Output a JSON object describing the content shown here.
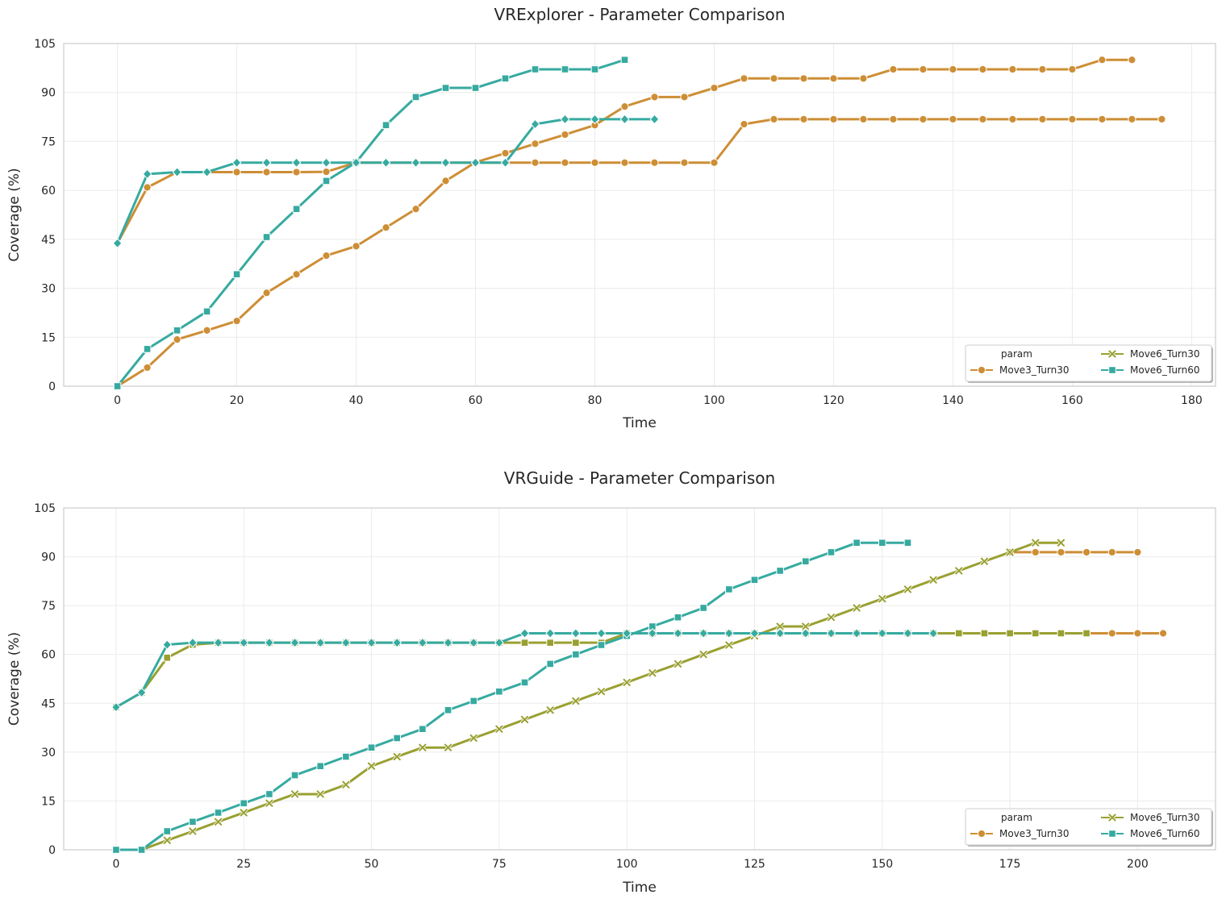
{
  "chart_data": [
    {
      "type": "line",
      "title": "VRExplorer - Parameter Comparison",
      "xlabel": "Time",
      "ylabel": "Coverage (%)",
      "xlim": [
        -9,
        184
      ],
      "ylim": [
        0,
        105
      ],
      "xticks": [
        0,
        20,
        40,
        60,
        80,
        100,
        120,
        140,
        160,
        180
      ],
      "yticks": [
        0,
        15,
        30,
        45,
        60,
        75,
        90,
        105
      ],
      "grid": true,
      "legend": {
        "placement": "lower-right",
        "title": "param",
        "entries": [
          {
            "label": "Move3_Turn30",
            "color": "#cd8e35",
            "marker": "circle"
          },
          {
            "label": "Move6_Turn30",
            "color": "#99a031",
            "marker": "x"
          },
          {
            "label": "Move6_Turn60",
            "color": "#36aaa0",
            "marker": "square"
          }
        ]
      },
      "series": [
        {
          "color": "#cd8e35",
          "marker": "circle",
          "x": [
            0,
            5,
            10,
            15,
            20,
            25,
            30,
            35,
            40,
            45,
            50,
            55,
            60,
            65,
            70,
            75,
            80,
            85,
            90,
            95,
            100,
            105,
            110,
            115,
            120,
            125,
            130,
            135,
            140,
            145,
            150,
            155,
            160,
            165,
            170
          ],
          "y": [
            0,
            5.7,
            14.3,
            17.1,
            20,
            28.6,
            34.3,
            40,
            42.9,
            48.6,
            54.3,
            62.9,
            68.6,
            71.4,
            74.3,
            77.1,
            80,
            85.7,
            88.6,
            88.6,
            91.4,
            94.3,
            94.3,
            94.3,
            94.3,
            94.3,
            97.1,
            97.1,
            97.1,
            97.1,
            97.1,
            97.1,
            97.1,
            100,
            100
          ]
        },
        {
          "color": "#cd8e35",
          "marker": "circle",
          "x": [
            0,
            5,
            10,
            15,
            20,
            25,
            30,
            35,
            40,
            45,
            50,
            55,
            60,
            65,
            70,
            75,
            80,
            85,
            90,
            95,
            100,
            105,
            110,
            115,
            120,
            125,
            130,
            135,
            140,
            145,
            150,
            155,
            160,
            165,
            170,
            175
          ],
          "y": [
            43.8,
            60.9,
            65.6,
            65.6,
            65.6,
            65.6,
            65.6,
            65.7,
            68.5,
            68.5,
            68.5,
            68.5,
            68.5,
            68.5,
            68.5,
            68.5,
            68.5,
            68.5,
            68.5,
            68.5,
            68.5,
            80.3,
            81.8,
            81.8,
            81.8,
            81.8,
            81.8,
            81.8,
            81.8,
            81.8,
            81.8,
            81.8,
            81.8,
            81.8,
            81.8,
            81.8
          ]
        },
        {
          "color": "#36aaa0",
          "marker": "square",
          "x": [
            0,
            5,
            10,
            15,
            20,
            25,
            30,
            35,
            40,
            45,
            50,
            55,
            60,
            65,
            70,
            75,
            80,
            85
          ],
          "y": [
            0,
            11.4,
            17.1,
            22.9,
            34.3,
            45.7,
            54.3,
            62.9,
            68.6,
            80,
            88.6,
            91.4,
            91.4,
            94.3,
            97.1,
            97.1,
            97.1,
            100
          ]
        },
        {
          "color": "#36aaa0",
          "marker": "diamond",
          "x": [
            0,
            5,
            10,
            15,
            20,
            25,
            30,
            35,
            40,
            45,
            50,
            55,
            60,
            65,
            70,
            75,
            80,
            85,
            90
          ],
          "y": [
            43.8,
            65,
            65.6,
            65.6,
            68.5,
            68.5,
            68.5,
            68.5,
            68.5,
            68.5,
            68.5,
            68.5,
            68.5,
            68.5,
            80.3,
            81.8,
            81.8,
            81.8,
            81.8
          ]
        }
      ]
    },
    {
      "type": "line",
      "title": "VRGuide - Parameter Comparison",
      "xlabel": "Time",
      "ylabel": "Coverage (%)",
      "xlim": [
        -10.25,
        215.25
      ],
      "ylim": [
        0,
        105
      ],
      "xticks": [
        0,
        25,
        50,
        75,
        100,
        125,
        150,
        175,
        200
      ],
      "yticks": [
        0,
        15,
        30,
        45,
        60,
        75,
        90,
        105
      ],
      "grid": true,
      "legend": {
        "placement": "lower-right",
        "title": "param",
        "entries": [
          {
            "label": "Move3_Turn30",
            "color": "#cd8e35",
            "marker": "circle"
          },
          {
            "label": "Move6_Turn30",
            "color": "#99a031",
            "marker": "x"
          },
          {
            "label": "Move6_Turn60",
            "color": "#36aaa0",
            "marker": "square"
          }
        ]
      },
      "series": [
        {
          "color": "#cd8e35",
          "marker": "circle",
          "x": [
            175,
            180,
            185,
            190,
            195,
            200
          ],
          "y": [
            91.4,
            91.4,
            91.4,
            91.4,
            91.4,
            91.4
          ]
        },
        {
          "color": "#cd8e35",
          "marker": "circle",
          "x": [
            185,
            190,
            195,
            200,
            205
          ],
          "y": [
            66.5,
            66.5,
            66.5,
            66.5,
            66.5
          ]
        },
        {
          "color": "#99a031",
          "marker": "x",
          "x": [
            0,
            5,
            10,
            15,
            20,
            25,
            30,
            35,
            40,
            45,
            50,
            55,
            60,
            65,
            70,
            75,
            80,
            85,
            90,
            95,
            100,
            105,
            110,
            115,
            120,
            125,
            130,
            135,
            140,
            145,
            150,
            155,
            160,
            165,
            170,
            175,
            180,
            185
          ],
          "y": [
            0,
            0,
            2.9,
            5.7,
            8.6,
            11.4,
            14.3,
            17.1,
            17.1,
            20,
            25.7,
            28.6,
            31.4,
            31.4,
            34.3,
            37.1,
            40,
            42.9,
            45.7,
            48.6,
            51.4,
            54.3,
            57.1,
            60,
            62.9,
            65.7,
            68.6,
            68.6,
            71.4,
            74.3,
            77.1,
            80,
            82.9,
            85.7,
            88.6,
            91.4,
            94.3,
            94.3
          ]
        },
        {
          "color": "#99a031",
          "marker": "square-olive",
          "x": [
            0,
            5,
            10,
            15,
            20,
            25,
            30,
            35,
            40,
            45,
            50,
            55,
            60,
            65,
            70,
            75,
            80,
            85,
            90,
            95,
            100,
            105,
            110,
            115,
            120,
            125,
            130,
            135,
            140,
            145,
            150,
            155,
            160,
            165,
            170,
            175,
            180,
            185,
            190
          ],
          "y": [
            43.8,
            48.3,
            59,
            63,
            63.6,
            63.6,
            63.6,
            63.6,
            63.6,
            63.6,
            63.6,
            63.6,
            63.6,
            63.6,
            63.6,
            63.6,
            63.6,
            63.6,
            63.6,
            63.6,
            66.5,
            66.5,
            66.5,
            66.5,
            66.5,
            66.5,
            66.5,
            66.5,
            66.5,
            66.5,
            66.5,
            66.5,
            66.5,
            66.5,
            66.5,
            66.5,
            66.5,
            66.5,
            66.5
          ]
        },
        {
          "color": "#36aaa0",
          "marker": "square",
          "x": [
            0,
            5,
            10,
            15,
            20,
            25,
            30,
            35,
            40,
            45,
            50,
            55,
            60,
            65,
            70,
            75,
            80,
            85,
            90,
            95,
            100,
            105,
            110,
            115,
            120,
            125,
            130,
            135,
            140,
            145,
            150,
            155
          ],
          "y": [
            0,
            0,
            5.7,
            8.6,
            11.4,
            14.3,
            17.1,
            22.9,
            25.7,
            28.6,
            31.4,
            34.3,
            37.1,
            42.9,
            45.7,
            48.6,
            51.4,
            57.1,
            60,
            62.9,
            65.7,
            68.6,
            71.4,
            74.3,
            80,
            82.9,
            85.7,
            88.6,
            91.4,
            94.3,
            94.3,
            94.3
          ]
        },
        {
          "color": "#36aaa0",
          "marker": "diamond",
          "x": [
            0,
            5,
            10,
            15,
            20,
            25,
            30,
            35,
            40,
            45,
            50,
            55,
            60,
            65,
            70,
            75,
            80,
            85,
            90,
            95,
            100,
            105,
            110,
            115,
            120,
            125,
            130,
            135,
            140,
            145,
            150,
            155,
            160
          ],
          "y": [
            43.8,
            48.3,
            63,
            63.6,
            63.6,
            63.6,
            63.6,
            63.6,
            63.6,
            63.6,
            63.6,
            63.6,
            63.6,
            63.6,
            63.6,
            63.6,
            66.5,
            66.5,
            66.5,
            66.5,
            66.5,
            66.5,
            66.5,
            66.5,
            66.5,
            66.5,
            66.5,
            66.5,
            66.5,
            66.5,
            66.5,
            66.5,
            66.5
          ]
        }
      ]
    }
  ]
}
